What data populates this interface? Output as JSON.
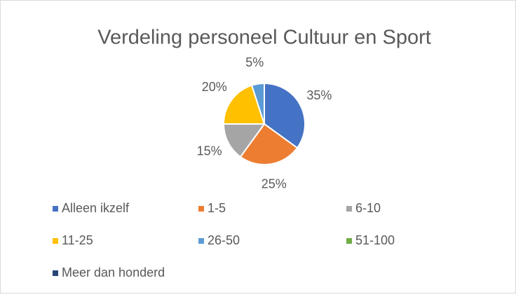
{
  "chart_data": {
    "type": "pie",
    "title": "Verdeling personeel Cultuur en Sport",
    "categories": [
      "Alleen ikzelf",
      "1-5",
      "6-10",
      "11-25",
      "26-50",
      "51-100",
      "Meer dan honderd"
    ],
    "values": [
      35,
      25,
      15,
      20,
      5,
      0,
      0
    ],
    "value_labels": [
      "35%",
      "25%",
      "15%",
      "20%",
      "5%",
      null,
      null
    ],
    "colors": [
      "#4472c4",
      "#ed7d31",
      "#a5a5a5",
      "#ffc000",
      "#5b9bd5",
      "#70ad47",
      "#264478"
    ],
    "legend": "bottom"
  }
}
